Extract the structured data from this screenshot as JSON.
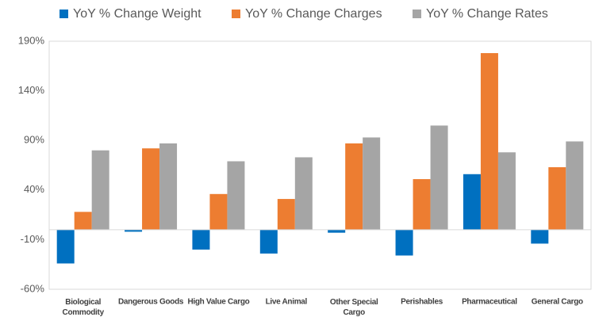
{
  "chart_data": {
    "type": "bar",
    "categories": [
      "Biological Commodity",
      "Dangerous Goods",
      "High Value Cargo",
      "Live Animal",
      "Other Special Cargo",
      "Perishables",
      "Pharmaceutical",
      "General Cargo"
    ],
    "series": [
      {
        "name": "YoY % Change Weight",
        "color": "#0070c0",
        "values": [
          -34,
          -2,
          -20,
          -24,
          -3,
          -26,
          56,
          -14
        ]
      },
      {
        "name": "YoY % Change Charges",
        "color": "#ed7d31",
        "values": [
          18,
          82,
          36,
          31,
          87,
          51,
          178,
          63
        ]
      },
      {
        "name": "YoY % Change Rates",
        "color": "#a5a5a5",
        "values": [
          80,
          87,
          69,
          73,
          93,
          105,
          78,
          89
        ]
      }
    ],
    "ylim": [
      -60,
      190
    ],
    "yticks": [
      {
        "value": -60,
        "label": "-60%"
      },
      {
        "value": -10,
        "label": "-10%"
      },
      {
        "value": 40,
        "label": "40%"
      },
      {
        "value": 90,
        "label": "90%"
      },
      {
        "value": 140,
        "label": "140%"
      },
      {
        "value": 190,
        "label": "190%"
      }
    ],
    "grid": false,
    "legend": "top"
  }
}
